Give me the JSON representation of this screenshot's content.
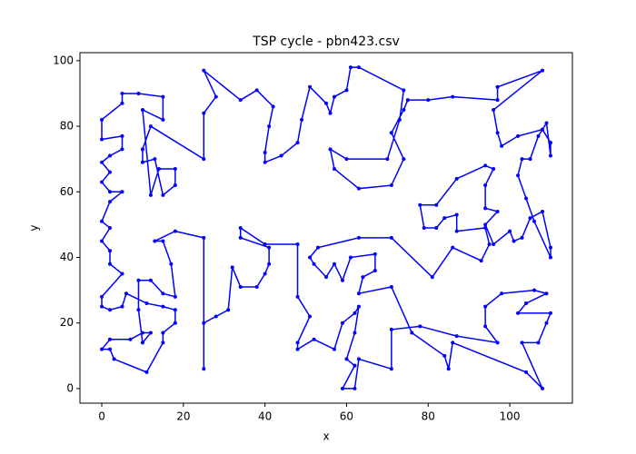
{
  "chart_data": {
    "type": "line",
    "title": "TSP cycle - pbn423.csv",
    "x_label": "x",
    "y_label": "y",
    "xlim": [
      -5.35,
      115.35
    ],
    "ylim": [
      -4.45,
      102.45
    ],
    "xticks": [
      0,
      20,
      40,
      60,
      80,
      100
    ],
    "yticks": [
      0,
      20,
      40,
      60,
      80,
      100
    ],
    "closed": true,
    "series": [
      {
        "color": "#0000ff",
        "x": [
          0,
          0,
          5,
          5,
          2,
          0,
          2,
          0,
          2,
          5,
          2,
          0,
          2,
          0,
          2,
          2,
          5,
          0,
          0,
          2,
          5,
          6,
          11,
          15,
          18,
          18,
          15,
          15,
          11,
          3,
          2,
          0,
          2,
          7,
          10,
          12,
          10,
          9,
          9,
          12,
          15,
          18,
          17,
          15,
          13,
          18,
          25,
          25,
          25,
          28,
          31,
          32,
          34,
          38,
          40,
          41,
          41,
          34,
          34,
          40,
          48,
          48,
          51,
          48,
          48,
          52,
          57,
          59,
          62,
          63,
          62,
          60,
          62,
          59,
          62,
          63,
          71,
          71,
          78,
          87,
          97,
          94,
          94,
          98,
          106,
          109,
          104,
          102,
          110,
          109,
          107,
          103,
          108,
          104,
          86,
          85,
          84,
          76,
          71,
          63,
          64,
          67,
          67,
          61,
          59,
          57,
          55,
          52,
          51,
          53,
          63,
          71,
          81,
          86,
          93,
          95,
          94,
          87,
          87,
          84,
          82,
          79,
          78,
          82,
          87,
          94,
          96,
          94,
          94,
          97,
          94,
          96,
          100,
          101,
          103,
          105,
          108,
          110,
          110,
          106,
          104,
          102,
          103,
          105,
          107,
          109,
          110,
          110,
          108,
          102,
          98,
          97,
          96,
          108,
          97,
          97,
          86,
          80,
          75,
          74,
          71,
          74,
          71,
          63,
          57,
          56,
          60,
          70,
          73,
          74,
          63,
          61,
          60,
          57,
          56,
          55,
          51,
          49,
          48,
          44,
          40,
          40,
          41,
          42,
          38,
          34,
          25,
          28,
          25,
          25,
          12,
          10,
          10,
          13,
          15,
          18,
          18,
          14,
          12,
          10,
          15,
          15,
          9,
          5,
          5
        ],
        "y": [
          82,
          76,
          77,
          73,
          71,
          69,
          66,
          63,
          60,
          60,
          57,
          51,
          49,
          45,
          42,
          38,
          35,
          28,
          25,
          24,
          25,
          29,
          26,
          25,
          24,
          20,
          17,
          14,
          5,
          9,
          12,
          12,
          15,
          15,
          17,
          17,
          14,
          24,
          33,
          33,
          29,
          28,
          38,
          45,
          45,
          48,
          46,
          6,
          20,
          22,
          24,
          37,
          31,
          31,
          35,
          38,
          43,
          46,
          49,
          44,
          44,
          28,
          22,
          14,
          12,
          15,
          12,
          20,
          23,
          25,
          17,
          9,
          7,
          0,
          0,
          9,
          6,
          18,
          19,
          16,
          14,
          19,
          25,
          29,
          30,
          29,
          26,
          23,
          23,
          20,
          14,
          14,
          0,
          5,
          14,
          6,
          10,
          17,
          31,
          29,
          34,
          36,
          41,
          40,
          33,
          38,
          34,
          38,
          40,
          43,
          46,
          46,
          34,
          43,
          39,
          44,
          49,
          48,
          53,
          52,
          49,
          49,
          56,
          56,
          64,
          68,
          67,
          62,
          55,
          54,
          50,
          44,
          48,
          45,
          46,
          52,
          54,
          43,
          40,
          51,
          58,
          65,
          70,
          70,
          77,
          81,
          71,
          75,
          79,
          77,
          74,
          78,
          85,
          97,
          92,
          88,
          89,
          88,
          88,
          85,
          78,
          70,
          62,
          61,
          67,
          73,
          70,
          70,
          82,
          91,
          98,
          98,
          91,
          89,
          84,
          87,
          92,
          82,
          75,
          71,
          69,
          72,
          80,
          86,
          91,
          88,
          97,
          89,
          84,
          70,
          80,
          73,
          69,
          70,
          59,
          62,
          67,
          67,
          59,
          85,
          82,
          89,
          90,
          90,
          87
        ]
      }
    ]
  }
}
